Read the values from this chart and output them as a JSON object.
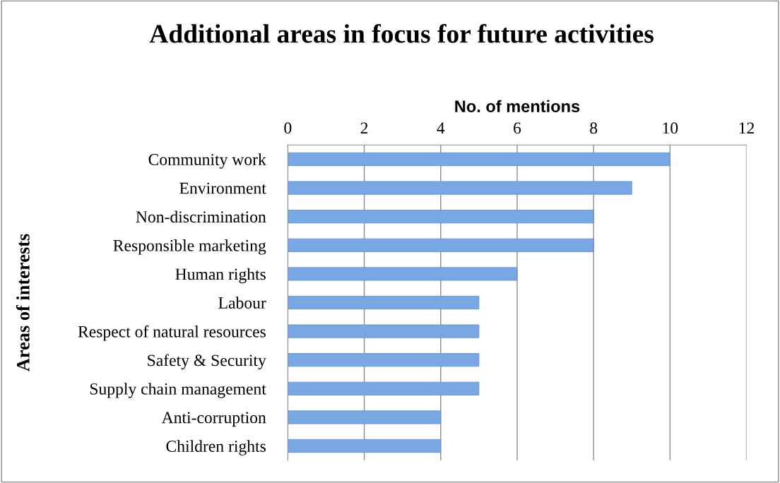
{
  "chart_data": {
    "type": "bar",
    "orientation": "horizontal",
    "title": "Additional areas in focus for future activities",
    "xlabel": "No. of mentions",
    "ylabel": "Areas of interests",
    "categories": [
      "Community work",
      "Environment",
      "Non-discrimination",
      "Responsible marketing",
      "Human rights",
      "Labour",
      "Respect of natural resources",
      "Safety & Security",
      "Supply chain management",
      "Anti-corruption",
      "Children rights"
    ],
    "values": [
      10,
      9,
      8,
      8,
      6,
      5,
      5,
      5,
      5,
      4,
      4
    ],
    "color": "#79a7e3",
    "xlim": [
      0,
      12
    ],
    "xticks": [
      0,
      2,
      4,
      6,
      8,
      10,
      12
    ],
    "grid": "x",
    "legend": false
  }
}
